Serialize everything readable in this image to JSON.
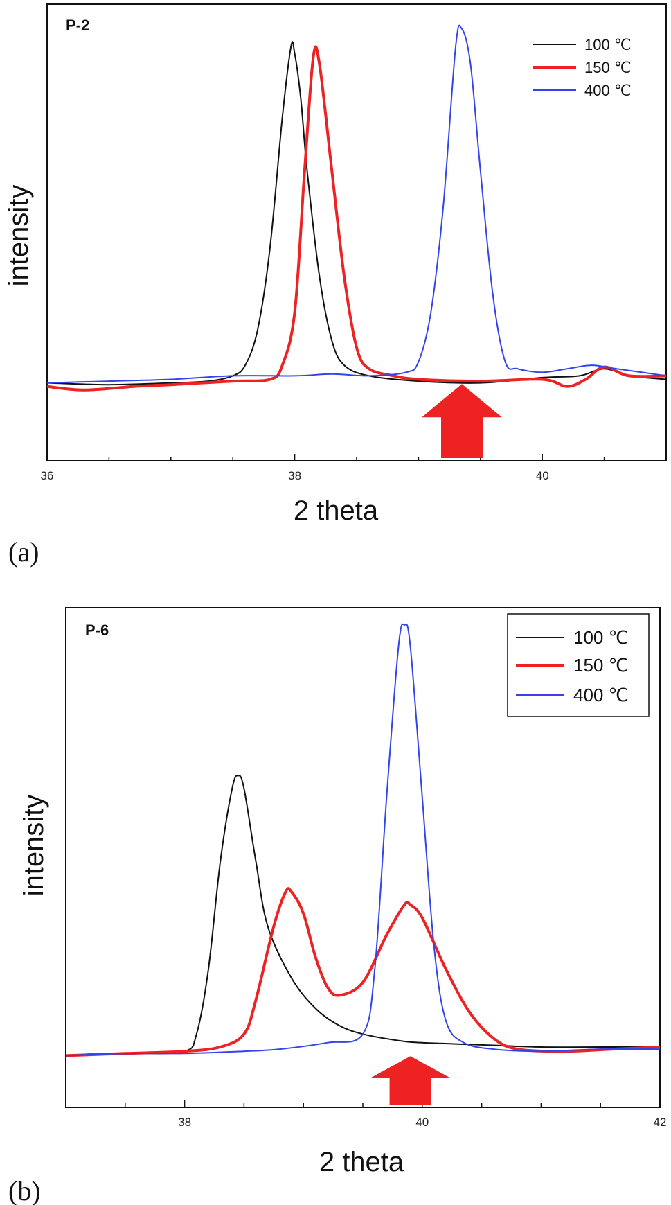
{
  "chart_data": [
    {
      "type": "line",
      "panel_label": "(a)",
      "sample_label": "P-2",
      "xlabel": "2 theta",
      "ylabel": "intensity",
      "xlim": [
        36,
        41
      ],
      "ylim": [
        -0.22,
        1.07
      ],
      "x_ticks": [
        36,
        38,
        40
      ],
      "legend_position": "top-right",
      "legend_boxed": false,
      "arrow_x": 39.35,
      "series": [
        {
          "name": "100 ℃",
          "color": "#111111",
          "width": 2,
          "points": [
            [
              36,
              0.0
            ],
            [
              36.5,
              -0.005
            ],
            [
              37,
              0.0
            ],
            [
              37.3,
              0.005
            ],
            [
              37.5,
              0.02
            ],
            [
              37.6,
              0.05
            ],
            [
              37.7,
              0.15
            ],
            [
              37.8,
              0.38
            ],
            [
              37.9,
              0.75
            ],
            [
              37.97,
              0.95
            ],
            [
              38.0,
              0.93
            ],
            [
              38.05,
              0.8
            ],
            [
              38.1,
              0.6
            ],
            [
              38.2,
              0.3
            ],
            [
              38.3,
              0.12
            ],
            [
              38.4,
              0.05
            ],
            [
              38.6,
              0.02
            ],
            [
              39.0,
              0.005
            ],
            [
              39.5,
              0.0
            ],
            [
              40.0,
              0.015
            ],
            [
              40.3,
              0.02
            ],
            [
              40.5,
              0.04
            ],
            [
              40.7,
              0.02
            ],
            [
              41,
              0.01
            ]
          ]
        },
        {
          "name": "150 ℃",
          "color": "#ee2222",
          "width": 4,
          "points": [
            [
              36,
              -0.01
            ],
            [
              36.3,
              -0.02
            ],
            [
              36.7,
              -0.01
            ],
            [
              37,
              -0.005
            ],
            [
              37.5,
              0.005
            ],
            [
              37.8,
              0.01
            ],
            [
              37.9,
              0.05
            ],
            [
              38.0,
              0.2
            ],
            [
              38.08,
              0.6
            ],
            [
              38.15,
              0.92
            ],
            [
              38.2,
              0.9
            ],
            [
              38.3,
              0.6
            ],
            [
              38.4,
              0.3
            ],
            [
              38.5,
              0.1
            ],
            [
              38.6,
              0.04
            ],
            [
              38.8,
              0.02
            ],
            [
              39.0,
              0.01
            ],
            [
              39.5,
              0.005
            ],
            [
              40.0,
              0.01
            ],
            [
              40.2,
              -0.01
            ],
            [
              40.35,
              0.01
            ],
            [
              40.5,
              0.045
            ],
            [
              40.7,
              0.02
            ],
            [
              41,
              0.02
            ]
          ]
        },
        {
          "name": "400 ℃",
          "color": "#3344ee",
          "width": 2,
          "points": [
            [
              36,
              0.0
            ],
            [
              36.5,
              0.005
            ],
            [
              37,
              0.01
            ],
            [
              37.5,
              0.02
            ],
            [
              38,
              0.02
            ],
            [
              38.3,
              0.025
            ],
            [
              38.6,
              0.02
            ],
            [
              38.9,
              0.03
            ],
            [
              39.0,
              0.06
            ],
            [
              39.1,
              0.2
            ],
            [
              39.2,
              0.5
            ],
            [
              39.3,
              0.95
            ],
            [
              39.35,
              1.0
            ],
            [
              39.42,
              0.9
            ],
            [
              39.5,
              0.6
            ],
            [
              39.6,
              0.25
            ],
            [
              39.7,
              0.06
            ],
            [
              39.8,
              0.04
            ],
            [
              40.0,
              0.03
            ],
            [
              40.2,
              0.04
            ],
            [
              40.4,
              0.05
            ],
            [
              40.6,
              0.04
            ],
            [
              41,
              0.02
            ]
          ]
        }
      ]
    },
    {
      "type": "line",
      "panel_label": "(b)",
      "sample_label": "P-6",
      "xlabel": "2 theta",
      "ylabel": "intensity",
      "xlim": [
        37,
        42
      ],
      "ylim": [
        -0.12,
        1.04
      ],
      "x_ticks": [
        38,
        40,
        42
      ],
      "legend_position": "top-right",
      "legend_boxed": true,
      "arrow_x": 39.9,
      "series": [
        {
          "name": "100 ℃",
          "color": "#111111",
          "width": 2,
          "points": [
            [
              37,
              0.0
            ],
            [
              37.3,
              0.005
            ],
            [
              37.6,
              0.005
            ],
            [
              38.0,
              0.01
            ],
            [
              38.1,
              0.05
            ],
            [
              38.2,
              0.2
            ],
            [
              38.3,
              0.45
            ],
            [
              38.4,
              0.62
            ],
            [
              38.45,
              0.65
            ],
            [
              38.5,
              0.62
            ],
            [
              38.6,
              0.45
            ],
            [
              38.7,
              0.3
            ],
            [
              38.9,
              0.18
            ],
            [
              39.1,
              0.11
            ],
            [
              39.3,
              0.07
            ],
            [
              39.5,
              0.05
            ],
            [
              39.8,
              0.035
            ],
            [
              40.0,
              0.03
            ],
            [
              40.5,
              0.025
            ],
            [
              41,
              0.02
            ],
            [
              41.5,
              0.02
            ],
            [
              42,
              0.02
            ]
          ]
        },
        {
          "name": "150 ℃",
          "color": "#ee2222",
          "width": 4,
          "points": [
            [
              37,
              0.0
            ],
            [
              37.5,
              0.005
            ],
            [
              38,
              0.01
            ],
            [
              38.3,
              0.02
            ],
            [
              38.5,
              0.05
            ],
            [
              38.6,
              0.13
            ],
            [
              38.75,
              0.3
            ],
            [
              38.85,
              0.38
            ],
            [
              38.9,
              0.38
            ],
            [
              39.0,
              0.33
            ],
            [
              39.1,
              0.23
            ],
            [
              39.2,
              0.16
            ],
            [
              39.3,
              0.14
            ],
            [
              39.5,
              0.17
            ],
            [
              39.7,
              0.28
            ],
            [
              39.85,
              0.35
            ],
            [
              39.9,
              0.35
            ],
            [
              40.0,
              0.32
            ],
            [
              40.2,
              0.2
            ],
            [
              40.4,
              0.1
            ],
            [
              40.6,
              0.04
            ],
            [
              40.8,
              0.015
            ],
            [
              41.2,
              0.01
            ],
            [
              41.6,
              0.015
            ],
            [
              42,
              0.02
            ]
          ]
        },
        {
          "name": "400 ℃",
          "color": "#3344ee",
          "width": 2,
          "points": [
            [
              37,
              0.0
            ],
            [
              37.5,
              0.005
            ],
            [
              38,
              0.005
            ],
            [
              38.5,
              0.01
            ],
            [
              38.8,
              0.015
            ],
            [
              39.2,
              0.03
            ],
            [
              39.5,
              0.05
            ],
            [
              39.6,
              0.2
            ],
            [
              39.7,
              0.6
            ],
            [
              39.8,
              0.95
            ],
            [
              39.85,
              1.0
            ],
            [
              39.9,
              0.95
            ],
            [
              40.0,
              0.6
            ],
            [
              40.1,
              0.25
            ],
            [
              40.2,
              0.08
            ],
            [
              40.35,
              0.03
            ],
            [
              40.6,
              0.015
            ],
            [
              41,
              0.01
            ],
            [
              41.5,
              0.015
            ],
            [
              42,
              0.015
            ]
          ]
        }
      ]
    }
  ]
}
